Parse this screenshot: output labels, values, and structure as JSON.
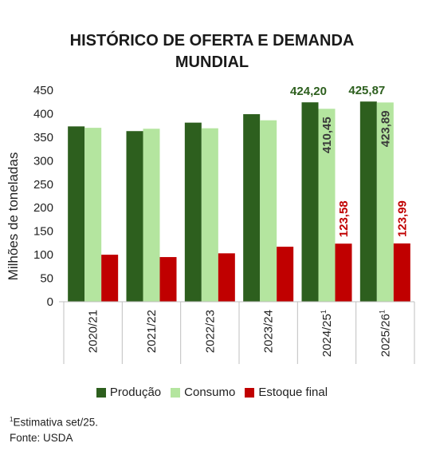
{
  "title_lines": [
    "HISTÓRICO DE OFERTA E DEMANDA",
    "MUNDIAL"
  ],
  "footnotes": {
    "marker": "1",
    "estimate": "Estimativa set/25.",
    "source": "Fonte: USDA"
  },
  "chart_data": {
    "type": "bar",
    "ylabel": "Milhões de toneladas",
    "ylim": [
      0,
      450
    ],
    "yticks": [
      0,
      50,
      100,
      150,
      200,
      250,
      300,
      350,
      400,
      450
    ],
    "grid": false,
    "legend_position": "bottom",
    "categories": [
      "2020/21",
      "2021/22",
      "2022/23",
      "2023/24",
      "2024/25",
      "2025/26"
    ],
    "category_footnote": [
      false,
      false,
      false,
      false,
      true,
      true
    ],
    "series": [
      {
        "name": "Produção",
        "color": "#2d5f1e",
        "label_color": "#2d5f1e",
        "values": [
          373,
          363,
          381,
          399,
          424.2,
          425.87
        ],
        "labels": [
          null,
          null,
          null,
          null,
          "424,20",
          "425,87"
        ]
      },
      {
        "name": "Consumo",
        "color": "#b4e59f",
        "label_color": "#3a3a3a",
        "values": [
          370,
          368,
          369,
          386,
          410.45,
          423.89
        ],
        "labels": [
          null,
          null,
          null,
          null,
          "410,45",
          "423,89"
        ]
      },
      {
        "name": "Estoque final",
        "color": "#c00000",
        "label_color": "#c00000",
        "values": [
          100,
          95,
          103,
          117,
          123.58,
          123.99
        ],
        "labels": [
          null,
          null,
          null,
          null,
          "123,58",
          "123,99"
        ]
      }
    ]
  }
}
